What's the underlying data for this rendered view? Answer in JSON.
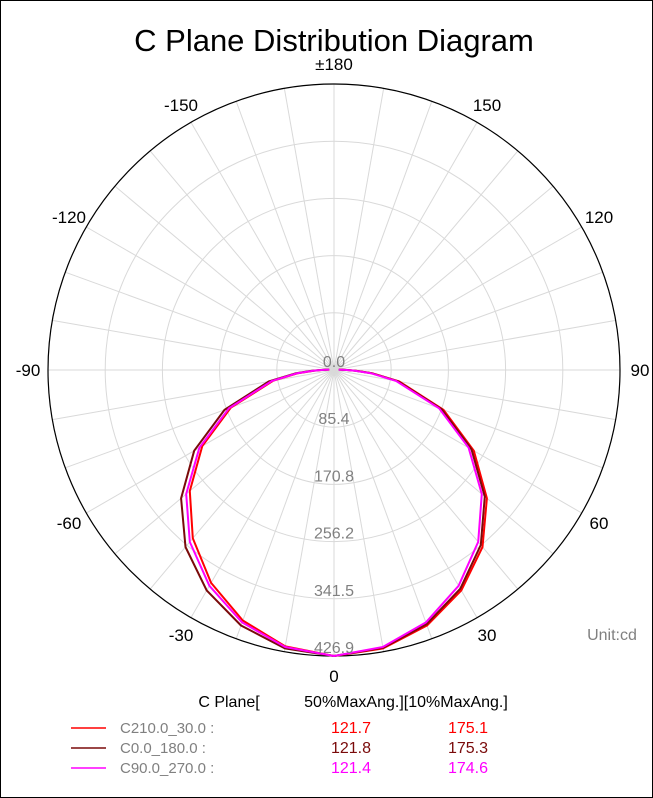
{
  "chart_data": {
    "type": "polar-line",
    "title": "C Plane Distribution Diagram",
    "unit_label": "Unit:cd",
    "angle_ticks": [
      {
        "value": 0,
        "label": "0"
      },
      {
        "value": 30,
        "label": "30"
      },
      {
        "value": 60,
        "label": "60"
      },
      {
        "value": 90,
        "label": "90"
      },
      {
        "value": 120,
        "label": "120"
      },
      {
        "value": 150,
        "label": "150"
      },
      {
        "value": 180,
        "label": "±180"
      },
      {
        "value": -150,
        "label": "-150"
      },
      {
        "value": -120,
        "label": "-120"
      },
      {
        "value": -90,
        "label": "-90"
      },
      {
        "value": -60,
        "label": "-60"
      },
      {
        "value": -30,
        "label": "-30"
      }
    ],
    "radial_ticks": [
      0.0,
      85.4,
      170.8,
      256.2,
      341.5,
      426.9
    ],
    "radial_tick_labels": [
      "0.0",
      "85.4",
      "170.8",
      "256.2",
      "341.5",
      "426.9"
    ],
    "rmax": 427,
    "legend": {
      "header_plane": "C Plane[",
      "header_angles": "50%MaxAng.][10%MaxAng.]"
    },
    "series": [
      {
        "name": "C210.0_30.0 :",
        "color": "#ff0000",
        "half_max_angle": "121.7",
        "tenth_max_angle": "175.1",
        "right_half": {
          "gamma": [
            0,
            10,
            20,
            30,
            40,
            50,
            60,
            70,
            80,
            85,
            88,
            90,
            92,
            95
          ],
          "cd": [
            427,
            422,
            406,
            380,
            345,
            298,
            241,
            174,
            99,
            58,
            33,
            20,
            12,
            8
          ]
        },
        "left_half": {
          "gamma": [
            0,
            10,
            20,
            30,
            40,
            50,
            60,
            70,
            80,
            85,
            88,
            90,
            92,
            95
          ],
          "cd": [
            427,
            419,
            398,
            367,
            328,
            281,
            227,
            164,
            92,
            54,
            30,
            18,
            11,
            7
          ]
        }
      },
      {
        "name": "C0.0_180.0 :",
        "color": "#7a0a0a",
        "half_max_angle": "121.8",
        "tenth_max_angle": "175.3",
        "right_half": {
          "gamma": [
            0,
            10,
            20,
            30,
            40,
            50,
            60,
            70,
            80,
            85,
            88,
            90,
            92,
            95
          ],
          "cd": [
            427,
            421,
            404,
            377,
            341,
            294,
            237,
            171,
            97,
            57,
            32,
            19,
            11,
            7
          ]
        },
        "left_half": {
          "gamma": [
            0,
            10,
            20,
            30,
            40,
            50,
            60,
            70,
            80,
            85,
            88,
            90,
            92,
            95
          ],
          "cd": [
            427,
            422,
            406,
            380,
            345,
            298,
            241,
            174,
            99,
            58,
            33,
            20,
            12,
            8
          ]
        }
      },
      {
        "name": "C90.0_270.0 :",
        "color": "#ff00ff",
        "half_max_angle": "121.4",
        "tenth_max_angle": "174.6",
        "right_half": {
          "gamma": [
            0,
            10,
            20,
            30,
            40,
            50,
            60,
            70,
            80,
            85,
            88,
            90,
            92,
            95
          ],
          "cd": [
            427,
            420,
            401,
            372,
            335,
            288,
            232,
            167,
            94,
            55,
            31,
            19,
            11,
            7
          ]
        },
        "left_half": {
          "gamma": [
            0,
            10,
            20,
            30,
            40,
            50,
            60,
            70,
            80,
            85,
            88,
            90,
            92,
            95
          ],
          "cd": [
            427,
            420,
            401,
            372,
            335,
            288,
            232,
            167,
            94,
            55,
            31,
            19,
            11,
            7
          ]
        }
      }
    ]
  }
}
